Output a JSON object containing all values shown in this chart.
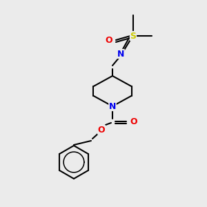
{
  "bg_color": "#ebebeb",
  "bond_color": "#000000",
  "bond_width": 1.5,
  "atom_colors": {
    "N": "#0000ee",
    "O": "#ee0000",
    "S": "#cccc00"
  },
  "font_size": 8.5,
  "fig_w": 3.0,
  "fig_h": 3.0,
  "dpi": 100,
  "xlim": [
    0,
    300
  ],
  "ylim": [
    0,
    300
  ]
}
